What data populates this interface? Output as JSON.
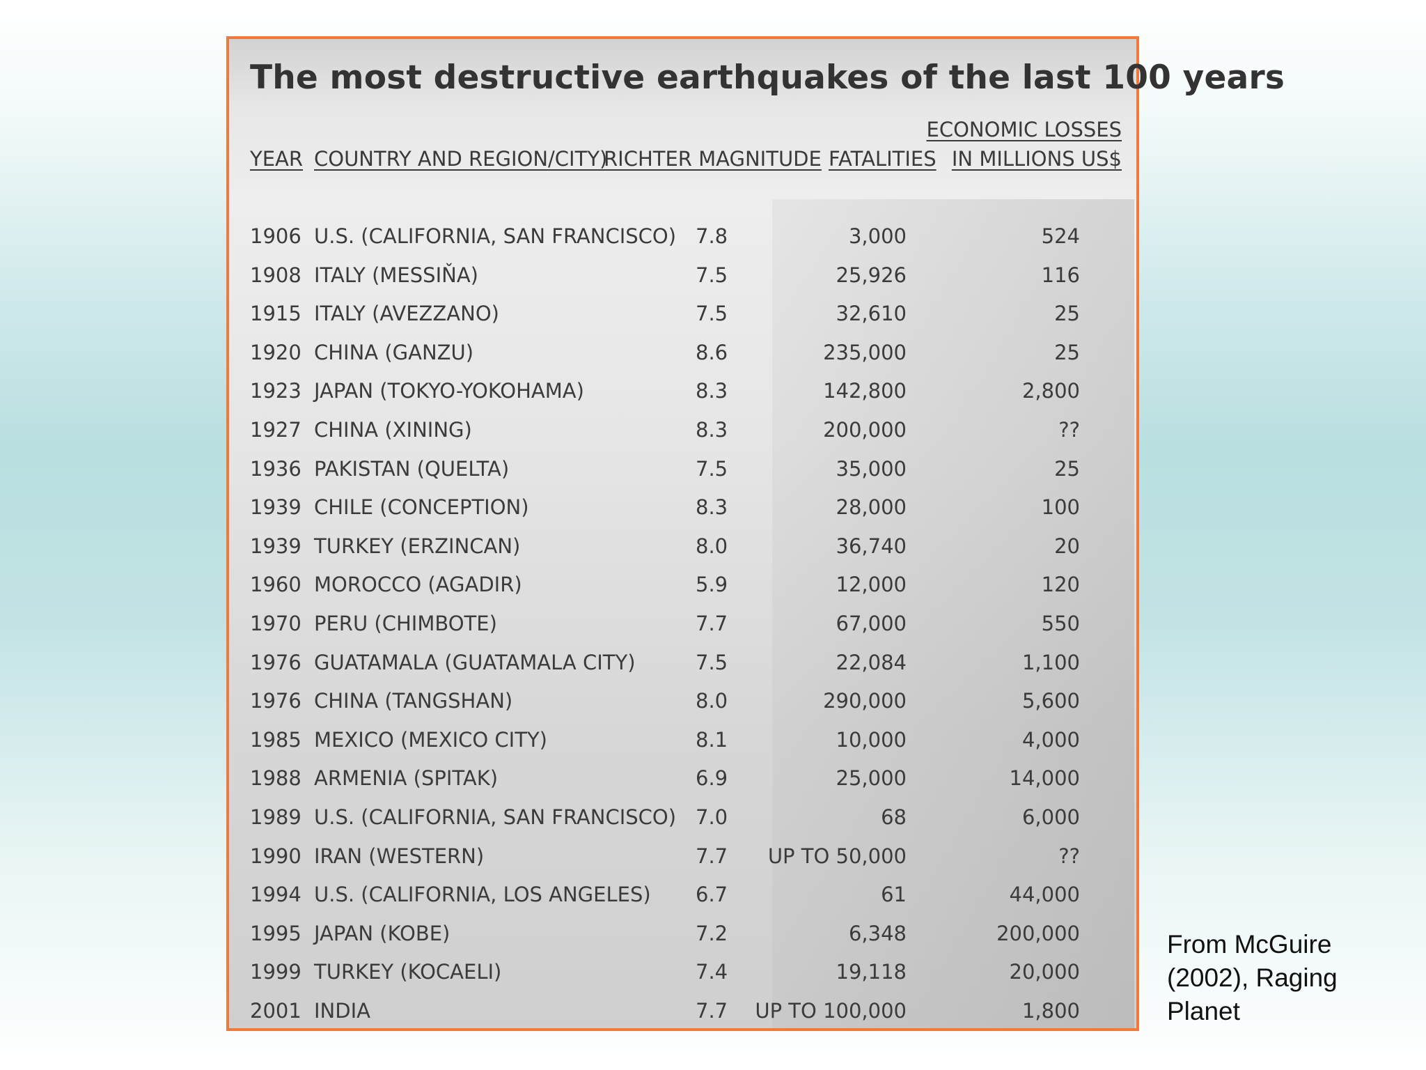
{
  "title": "The most destructive earthquakes of the last 100 years",
  "headers": {
    "year": "YEAR",
    "country": "COUNTRY AND REGION/CITY)",
    "magnitude": "RICHTER MAGNITUDE",
    "fatalities": "FATALITIES",
    "losses_line1": "ECONOMIC LOSSES",
    "losses_line2": "IN MILLIONS US$"
  },
  "rows": [
    {
      "year": "1906",
      "country": "U.S. (CALIFORNIA, SAN FRANCISCO)",
      "magnitude": "7.8",
      "fatalities": "3,000",
      "losses": "524"
    },
    {
      "year": "1908",
      "country": "ITALY (MESSIŇA)",
      "magnitude": "7.5",
      "fatalities": "25,926",
      "losses": "116"
    },
    {
      "year": "1915",
      "country": "ITALY (AVEZZANO)",
      "magnitude": "7.5",
      "fatalities": "32,610",
      "losses": "25"
    },
    {
      "year": "1920",
      "country": "CHINA (GANZU)",
      "magnitude": "8.6",
      "fatalities": "235,000",
      "losses": "25"
    },
    {
      "year": "1923",
      "country": "JAPAN (TOKYO-YOKOHAMA)",
      "magnitude": "8.3",
      "fatalities": "142,800",
      "losses": "2,800"
    },
    {
      "year": "1927",
      "country": "CHINA (XINING)",
      "magnitude": "8.3",
      "fatalities": "200,000",
      "losses": "??"
    },
    {
      "year": "1936",
      "country": "PAKISTAN (QUELTA)",
      "magnitude": "7.5",
      "fatalities": "35,000",
      "losses": "25"
    },
    {
      "year": "1939",
      "country": "CHILE (CONCEPTION)",
      "magnitude": "8.3",
      "fatalities": "28,000",
      "losses": "100"
    },
    {
      "year": "1939",
      "country": "TURKEY (ERZINCAN)",
      "magnitude": "8.0",
      "fatalities": "36,740",
      "losses": "20"
    },
    {
      "year": "1960",
      "country": "MOROCCO (AGADIR)",
      "magnitude": "5.9",
      "fatalities": "12,000",
      "losses": "120"
    },
    {
      "year": "1970",
      "country": "PERU (CHIMBOTE)",
      "magnitude": "7.7",
      "fatalities": "67,000",
      "losses": "550"
    },
    {
      "year": "1976",
      "country": "GUATAMALA (GUATAMALA CITY)",
      "magnitude": "7.5",
      "fatalities": "22,084",
      "losses": "1,100"
    },
    {
      "year": "1976",
      "country": "CHINA (TANGSHAN)",
      "magnitude": "8.0",
      "fatalities": "290,000",
      "losses": "5,600"
    },
    {
      "year": "1985",
      "country": "MEXICO (MEXICO CITY)",
      "magnitude": "8.1",
      "fatalities": "10,000",
      "losses": "4,000"
    },
    {
      "year": "1988",
      "country": "ARMENIA (SPITAK)",
      "magnitude": "6.9",
      "fatalities": "25,000",
      "losses": "14,000"
    },
    {
      "year": "1989",
      "country": "U.S. (CALIFORNIA, SAN FRANCISCO)",
      "magnitude": "7.0",
      "fatalities": "68",
      "losses": "6,000"
    },
    {
      "year": "1990",
      "country": "IRAN (WESTERN)",
      "magnitude": "7.7",
      "fatalities": "UP TO 50,000",
      "losses": "??"
    },
    {
      "year": "1994",
      "country": "U.S. (CALIFORNIA, LOS ANGELES)",
      "magnitude": "6.7",
      "fatalities": "61",
      "losses": "44,000"
    },
    {
      "year": "1995",
      "country": "JAPAN (KOBE)",
      "magnitude": "7.2",
      "fatalities": "6,348",
      "losses": "200,000"
    },
    {
      "year": "1999",
      "country": "TURKEY (KOCAELI)",
      "magnitude": "7.4",
      "fatalities": "19,118",
      "losses": "20,000"
    },
    {
      "year": "2001",
      "country": "INDIA",
      "magnitude": "7.7",
      "fatalities": "UP TO 100,000",
      "losses": "1,800"
    }
  ],
  "credit": {
    "line1": "From McGuire",
    "line2": "(2002), Raging",
    "line3": "Planet"
  }
}
